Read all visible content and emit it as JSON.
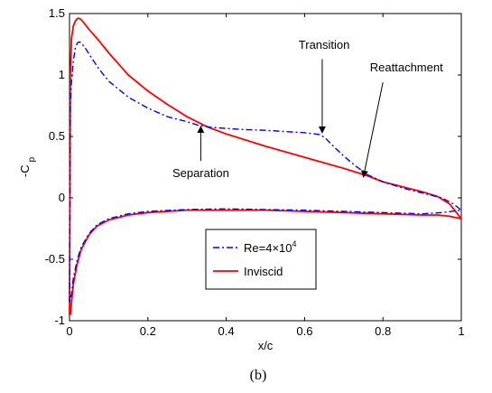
{
  "chart_data": {
    "type": "line",
    "caption": "(b)",
    "xlabel": "x/c",
    "ylabel": "-C",
    "ylabel_sub": "p",
    "xlim": [
      0,
      1
    ],
    "ylim": [
      -1,
      1.5
    ],
    "xticks": [
      0,
      0.2,
      0.4,
      0.6,
      0.8,
      1
    ],
    "xtick_labels": [
      "0",
      "0.2",
      "0.4",
      "0.6",
      "0.8",
      "1"
    ],
    "yticks": [
      -1,
      -0.5,
      0,
      0.5,
      1,
      1.5
    ],
    "ytick_labels": [
      "-1",
      "-0.5",
      "0",
      "0.5",
      "1",
      "1.5"
    ],
    "grid": false,
    "legend_position": "lower-center",
    "series": [
      {
        "name": "Re=4×10",
        "name_sup": "4",
        "color": "#0000ff",
        "style": "dash-dot",
        "x": [
          0,
          0.002,
          0.005,
          0.01,
          0.015,
          0.02,
          0.025,
          0.03,
          0.04,
          0.05,
          0.075,
          0.1,
          0.15,
          0.2,
          0.25,
          0.3,
          0.33,
          0.36,
          0.4,
          0.45,
          0.5,
          0.55,
          0.6,
          0.64,
          0.655,
          0.67,
          0.7,
          0.73,
          0.76,
          0.8,
          0.85,
          0.9,
          0.95,
          0.98,
          1,
          1,
          0.95,
          0.9,
          0.8,
          0.7,
          0.6,
          0.5,
          0.4,
          0.3,
          0.2,
          0.15,
          0.1,
          0.07,
          0.05,
          0.03,
          0.02,
          0.01,
          0.005,
          0
        ],
        "y": [
          -0.85,
          0.75,
          0.95,
          1.12,
          1.22,
          1.26,
          1.27,
          1.26,
          1.22,
          1.17,
          1.05,
          0.95,
          0.82,
          0.73,
          0.66,
          0.62,
          0.59,
          0.575,
          0.565,
          0.555,
          0.55,
          0.54,
          0.53,
          0.515,
          0.48,
          0.43,
          0.34,
          0.26,
          0.19,
          0.13,
          0.08,
          0.04,
          0,
          -0.05,
          -0.1,
          -0.1,
          -0.12,
          -0.13,
          -0.12,
          -0.11,
          -0.1,
          -0.095,
          -0.09,
          -0.095,
          -0.11,
          -0.13,
          -0.17,
          -0.22,
          -0.29,
          -0.4,
          -0.5,
          -0.65,
          -0.78,
          -0.85
        ]
      },
      {
        "name": "Inviscid",
        "color": "#ff0000",
        "style": "solid",
        "x": [
          0,
          0.002,
          0.005,
          0.01,
          0.015,
          0.02,
          0.025,
          0.03,
          0.04,
          0.05,
          0.075,
          0.1,
          0.15,
          0.2,
          0.25,
          0.3,
          0.35,
          0.4,
          0.5,
          0.6,
          0.7,
          0.76,
          0.8,
          0.85,
          0.9,
          0.94,
          0.97,
          1,
          1,
          0.97,
          0.94,
          0.9,
          0.8,
          0.7,
          0.6,
          0.5,
          0.4,
          0.3,
          0.2,
          0.15,
          0.1,
          0.07,
          0.05,
          0.03,
          0.02,
          0.01,
          0.005,
          0.002,
          0
        ],
        "y": [
          -0.95,
          1.0,
          1.3,
          1.4,
          1.44,
          1.46,
          1.46,
          1.45,
          1.41,
          1.37,
          1.28,
          1.18,
          1.0,
          0.87,
          0.76,
          0.66,
          0.58,
          0.52,
          0.42,
          0.33,
          0.24,
          0.18,
          0.13,
          0.09,
          0.05,
          0.01,
          -0.05,
          -0.17,
          -0.17,
          -0.15,
          -0.14,
          -0.14,
          -0.13,
          -0.12,
          -0.11,
          -0.1,
          -0.1,
          -0.1,
          -0.12,
          -0.14,
          -0.18,
          -0.23,
          -0.3,
          -0.42,
          -0.53,
          -0.7,
          -0.85,
          -0.95,
          -0.95
        ]
      }
    ],
    "annotations": [
      {
        "text": "Transition",
        "label_x": 0.65,
        "label_y": 1.215,
        "arrow_from": [
          0.645,
          1.13
        ],
        "arrow_to": [
          0.645,
          0.53
        ]
      },
      {
        "text": "Reattachment",
        "label_x": 0.86,
        "label_y": 1.03,
        "arrow_from": [
          0.8,
          0.94
        ],
        "arrow_to": [
          0.75,
          0.17
        ]
      },
      {
        "text": "Separation",
        "label_x": 0.335,
        "label_y": 0.17,
        "arrow_from": [
          0.335,
          0.3
        ],
        "arrow_to": [
          0.335,
          0.58
        ]
      }
    ]
  }
}
